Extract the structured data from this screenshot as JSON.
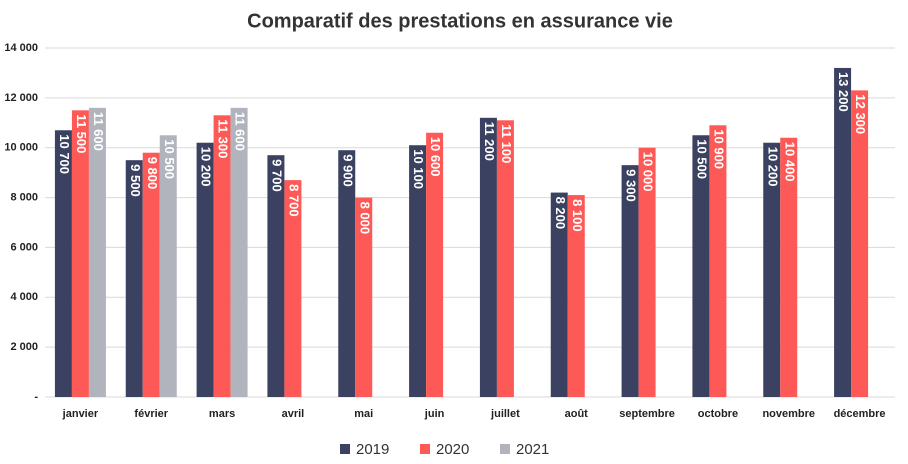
{
  "chart_data": {
    "type": "bar",
    "title": "Comparatif des prestations en assurance vie",
    "categories": [
      "janvier",
      "février",
      "mars",
      "avril",
      "mai",
      "juin",
      "juillet",
      "août",
      "septembre",
      "octobre",
      "novembre",
      "décembre"
    ],
    "series": [
      {
        "name": "2019",
        "color": "#3b4261",
        "values": [
          10700,
          9500,
          10200,
          9700,
          9900,
          10100,
          11200,
          8200,
          9300,
          10500,
          10200,
          13200
        ],
        "value_labels": [
          "10 700",
          "9 500",
          "10 200",
          "9 700",
          "9 900",
          "10 100",
          "11 200",
          "8 200",
          "9 300",
          "10 500",
          "10 200",
          "13 200"
        ]
      },
      {
        "name": "2020",
        "color": "#fd5a57",
        "values": [
          11500,
          9800,
          11300,
          8700,
          8000,
          10600,
          11100,
          8100,
          10000,
          10900,
          10400,
          12300
        ],
        "value_labels": [
          "11 500",
          "9 800",
          "11 300",
          "8 700",
          "8 000",
          "10 600",
          "11 100",
          "8 100",
          "10 000",
          "10 900",
          "10 400",
          "12 300"
        ]
      },
      {
        "name": "2021",
        "color": "#b2b4bd",
        "values": [
          11600,
          10500,
          11600,
          null,
          null,
          null,
          null,
          null,
          null,
          null,
          null,
          null
        ],
        "value_labels": [
          "11 600",
          "10 500",
          "11 600",
          null,
          null,
          null,
          null,
          null,
          null,
          null,
          null,
          null
        ]
      }
    ],
    "ylim": [
      0,
      14000
    ],
    "yticks": [
      {
        "value": 0,
        "label": "-"
      },
      {
        "value": 2000,
        "label": "2 000"
      },
      {
        "value": 4000,
        "label": "4 000"
      },
      {
        "value": 6000,
        "label": "6 000"
      },
      {
        "value": 8000,
        "label": "8 000"
      },
      {
        "value": 10000,
        "label": "10 000"
      },
      {
        "value": 12000,
        "label": "12 000"
      },
      {
        "value": 14000,
        "label": "14 000"
      }
    ],
    "grid": true,
    "legend": "bottom"
  }
}
